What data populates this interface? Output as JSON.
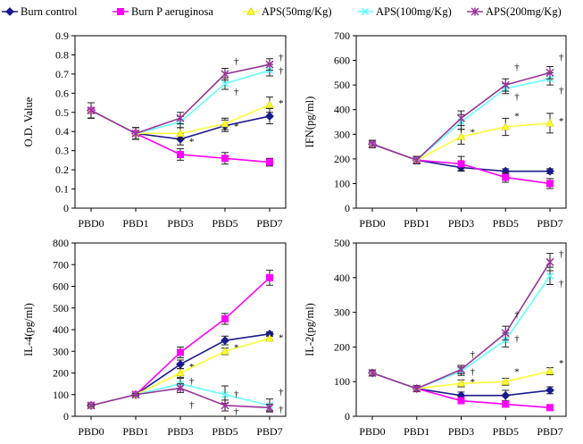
{
  "legend": [
    {
      "label": "Burn control",
      "color": "#1a1a8c",
      "marker": "diamond"
    },
    {
      "label": "Burn P aeruginosa",
      "color": "#ff00ff",
      "marker": "square"
    },
    {
      "label": "APS(50mg/Kg)",
      "color": "#ffff33",
      "marker": "triangle"
    },
    {
      "label": "APS(100mg/Kg)",
      "color": "#66ffff",
      "marker": "x"
    },
    {
      "label": "APS(200mg/Kg)",
      "color": "#993399",
      "marker": "star"
    }
  ],
  "chart_data": [
    {
      "type": "line",
      "ylabel": "O.D. Value",
      "categories": [
        "PBD0",
        "PBD1",
        "PBD3",
        "PBD5",
        "PBD7"
      ],
      "ylim": [
        0,
        0.9
      ],
      "yticks": [
        "0",
        "0.1",
        "0.2",
        "0.3",
        "0.4",
        "0.5",
        "0.6",
        "0.7",
        "0.8",
        "0.9"
      ],
      "series": [
        {
          "name": "Burn control",
          "values": [
            0.51,
            0.39,
            0.36,
            0.43,
            0.48
          ],
          "errors": [
            0.04,
            0.03,
            0.03,
            0.03,
            0.04
          ]
        },
        {
          "name": "Burn P aeruginosa",
          "values": [
            0.51,
            0.39,
            0.28,
            0.26,
            0.24
          ],
          "errors": [
            0.04,
            0.03,
            0.03,
            0.03,
            0.02
          ]
        },
        {
          "name": "APS(50mg/Kg)",
          "values": [
            0.51,
            0.39,
            0.39,
            0.44,
            0.54
          ],
          "errors": [
            0.04,
            0.03,
            0.03,
            0.03,
            0.04
          ]
        },
        {
          "name": "APS(100mg/Kg)",
          "values": [
            0.51,
            0.39,
            0.45,
            0.65,
            0.72
          ],
          "errors": [
            0.04,
            0.03,
            0.03,
            0.03,
            0.03
          ]
        },
        {
          "name": "APS(200mg/Kg)",
          "values": [
            0.51,
            0.39,
            0.47,
            0.7,
            0.75
          ],
          "errors": [
            0.04,
            0.03,
            0.03,
            0.03,
            0.03
          ]
        }
      ],
      "annotations": [
        {
          "category": "PBD3",
          "value": 0.35,
          "text": "*"
        },
        {
          "category": "PBD5",
          "value": 0.43,
          "text": "*"
        },
        {
          "category": "PBD7",
          "value": 0.55,
          "text": "*"
        },
        {
          "category": "PBD5",
          "value": 0.61,
          "text": "†"
        },
        {
          "category": "PBD5",
          "value": 0.77,
          "text": "†"
        },
        {
          "category": "PBD7",
          "value": 0.79,
          "text": "†"
        },
        {
          "category": "PBD7",
          "value": 0.72,
          "text": "†"
        }
      ]
    },
    {
      "type": "line",
      "ylabel": "IFN(pg/ml)",
      "categories": [
        "PBD0",
        "PBD1",
        "PBD3",
        "PBD5",
        "PBD7"
      ],
      "ylim": [
        0,
        700
      ],
      "yticks": [
        "0",
        "100",
        "200",
        "300",
        "400",
        "500",
        "600",
        "700"
      ],
      "series": [
        {
          "name": "Burn control",
          "values": [
            260,
            195,
            165,
            150,
            150
          ],
          "errors": [
            15,
            15,
            12,
            10,
            10
          ]
        },
        {
          "name": "Burn P aeruginosa",
          "values": [
            260,
            195,
            180,
            125,
            100
          ],
          "errors": [
            15,
            15,
            30,
            20,
            20
          ]
        },
        {
          "name": "APS(50mg/Kg)",
          "values": [
            260,
            195,
            290,
            330,
            345
          ],
          "errors": [
            15,
            15,
            30,
            35,
            40
          ]
        },
        {
          "name": "APS(100mg/Kg)",
          "values": [
            260,
            195,
            350,
            485,
            525
          ],
          "errors": [
            15,
            15,
            30,
            20,
            25
          ]
        },
        {
          "name": "APS(200mg/Kg)",
          "values": [
            260,
            195,
            365,
            500,
            550
          ],
          "errors": [
            15,
            15,
            30,
            25,
            25
          ]
        }
      ],
      "annotations": [
        {
          "category": "PBD3",
          "value": 310,
          "text": "*"
        },
        {
          "category": "PBD5",
          "value": 375,
          "text": "*"
        },
        {
          "category": "PBD7",
          "value": 355,
          "text": "*"
        },
        {
          "category": "PBD5",
          "value": 455,
          "text": "†"
        },
        {
          "category": "PBD5",
          "value": 575,
          "text": "†"
        },
        {
          "category": "PBD7",
          "value": 615,
          "text": "†"
        },
        {
          "category": "PBD7",
          "value": 480,
          "text": "†"
        }
      ]
    },
    {
      "type": "line",
      "ylabel": "IL-4(pg/ml)",
      "categories": [
        "PBD0",
        "PBD1",
        "PBD3",
        "PBD5",
        "PBD7"
      ],
      "ylim": [
        0,
        800
      ],
      "yticks": [
        "0",
        "100",
        "200",
        "300",
        "400",
        "500",
        "600",
        "700",
        "800"
      ],
      "series": [
        {
          "name": "Burn control",
          "values": [
            50,
            100,
            240,
            350,
            380
          ],
          "errors": [
            5,
            5,
            20,
            20,
            10
          ]
        },
        {
          "name": "Burn P aeruginosa",
          "values": [
            50,
            100,
            295,
            450,
            640
          ],
          "errors": [
            5,
            5,
            25,
            25,
            35
          ]
        },
        {
          "name": "APS(50mg/Kg)",
          "values": [
            50,
            100,
            200,
            300,
            360
          ],
          "errors": [
            5,
            5,
            20,
            15,
            10
          ]
        },
        {
          "name": "APS(100mg/Kg)",
          "values": [
            50,
            100,
            150,
            100,
            50
          ],
          "errors": [
            5,
            5,
            25,
            40,
            30
          ]
        },
        {
          "name": "APS(200mg/Kg)",
          "values": [
            50,
            100,
            130,
            50,
            40
          ],
          "errors": [
            5,
            5,
            20,
            25,
            15
          ]
        }
      ],
      "annotations": [
        {
          "category": "PBD3",
          "value": 230,
          "text": "*"
        },
        {
          "category": "PBD3",
          "value": 165,
          "text": "†"
        },
        {
          "category": "PBD3",
          "value": 55,
          "text": "†"
        },
        {
          "category": "PBD5",
          "value": 320,
          "text": "*"
        },
        {
          "category": "PBD5",
          "value": 105,
          "text": "†"
        },
        {
          "category": "PBD5",
          "value": 25,
          "text": "†"
        },
        {
          "category": "PBD7",
          "value": 365,
          "text": "*"
        },
        {
          "category": "PBD7",
          "value": 115,
          "text": "†"
        },
        {
          "category": "PBD7",
          "value": 35,
          "text": "†"
        }
      ]
    },
    {
      "type": "line",
      "ylabel": "IL-2(pg/ml)",
      "categories": [
        "PBD0",
        "PBD1",
        "PBD3",
        "PBD5",
        "PBD7"
      ],
      "ylim": [
        0,
        500
      ],
      "yticks": [
        "0",
        "100",
        "200",
        "300",
        "400",
        "500"
      ],
      "series": [
        {
          "name": "Burn control",
          "values": [
            125,
            80,
            60,
            60,
            75
          ],
          "errors": [
            8,
            8,
            10,
            15,
            10
          ]
        },
        {
          "name": "Burn P aeruginosa",
          "values": [
            125,
            80,
            45,
            35,
            25
          ],
          "errors": [
            8,
            8,
            8,
            8,
            5
          ]
        },
        {
          "name": "APS(50mg/Kg)",
          "values": [
            125,
            80,
            95,
            100,
            130
          ],
          "errors": [
            8,
            8,
            10,
            10,
            10
          ]
        },
        {
          "name": "APS(100mg/Kg)",
          "values": [
            125,
            80,
            130,
            220,
            405
          ],
          "errors": [
            8,
            8,
            12,
            20,
            25
          ]
        },
        {
          "name": "APS(200mg/Kg)",
          "values": [
            125,
            80,
            135,
            240,
            445
          ],
          "errors": [
            8,
            8,
            12,
            20,
            25
          ]
        }
      ],
      "annotations": [
        {
          "category": "PBD3",
          "value": 100,
          "text": "*"
        },
        {
          "category": "PBD3",
          "value": 130,
          "text": "†"
        },
        {
          "category": "PBD3",
          "value": 180,
          "text": "†"
        },
        {
          "category": "PBD5",
          "value": 130,
          "text": "*"
        },
        {
          "category": "PBD5",
          "value": 225,
          "text": "†"
        },
        {
          "category": "PBD5",
          "value": 295,
          "text": "†"
        },
        {
          "category": "PBD7",
          "value": 155,
          "text": "*"
        },
        {
          "category": "PBD7",
          "value": 385,
          "text": "†"
        },
        {
          "category": "PBD7",
          "value": 470,
          "text": "†"
        }
      ]
    }
  ]
}
